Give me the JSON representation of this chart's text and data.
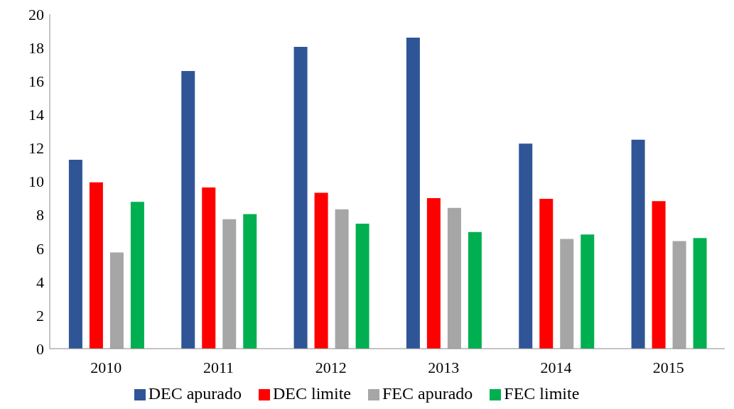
{
  "chart_data": {
    "type": "bar",
    "categories": [
      "2010",
      "2011",
      "2012",
      "2013",
      "2014",
      "2015"
    ],
    "series": [
      {
        "name": "DEC apurado",
        "color": "#2f5597",
        "values": [
          11.3,
          16.6,
          18.05,
          18.6,
          12.26,
          12.49
        ]
      },
      {
        "name": "DEC limite",
        "color": "#ff0000",
        "values": [
          9.95,
          9.64,
          9.32,
          9.0,
          8.96,
          8.82
        ]
      },
      {
        "name": "FEC apurado",
        "color": "#a6a6a6",
        "values": [
          5.75,
          7.74,
          8.33,
          8.42,
          6.56,
          6.43
        ]
      },
      {
        "name": "FEC limite",
        "color": "#00b050",
        "values": [
          8.78,
          8.05,
          7.47,
          6.97,
          6.83,
          6.61
        ]
      }
    ],
    "ylim": [
      0,
      20
    ],
    "yticks": [
      0,
      2,
      4,
      6,
      8,
      10,
      12,
      14,
      16,
      18,
      20
    ],
    "grid": false,
    "legend": "bottom"
  }
}
